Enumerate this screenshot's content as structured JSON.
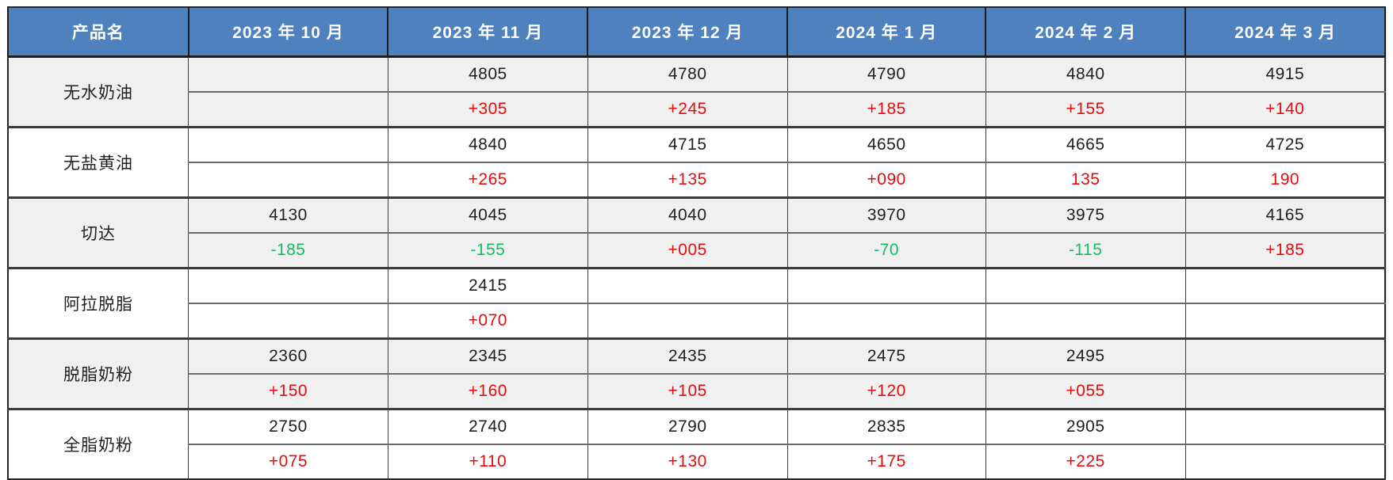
{
  "colors": {
    "header_bg": "#4e81bd",
    "header_text": "#ffffff",
    "band_gray": "#f0f0f0",
    "band_white": "#ffffff",
    "price_text": "#1f1f1f",
    "change_positive_red": "#e60c0c",
    "change_negative_green": "#11bd63"
  },
  "chart_data": {
    "type": "table",
    "title": "",
    "columns": [
      "产品名",
      "2023 年 10 月",
      "2023 年 11 月",
      "2023 年 12 月",
      "2024 年 1 月",
      "2024 年 2 月",
      "2024 年 3 月"
    ],
    "row_structure": "each product has a price row and a month-over-month change row; red = increase, green = decrease",
    "rows": [
      {
        "product": "无水奶油",
        "prices": [
          "",
          "4805",
          "4780",
          "4790",
          "4840",
          "4915"
        ],
        "changes": [
          "",
          "+305",
          "+245",
          "+185",
          "+155",
          "+140"
        ],
        "change_types": [
          "",
          "pos",
          "pos",
          "pos",
          "pos",
          "pos"
        ]
      },
      {
        "product": "无盐黄油",
        "prices": [
          "",
          "4840",
          "4715",
          "4650",
          "4665",
          "4725"
        ],
        "changes": [
          "",
          "+265",
          "+135",
          "+090",
          "135",
          "190"
        ],
        "change_types": [
          "",
          "pos",
          "pos",
          "pos",
          "pos",
          "pos"
        ]
      },
      {
        "product": "切达",
        "prices": [
          "4130",
          "4045",
          "4040",
          "3970",
          "3975",
          "4165"
        ],
        "changes": [
          "-185",
          "-155",
          "+005",
          "-70",
          "-115",
          "+185"
        ],
        "change_types": [
          "neg",
          "neg",
          "pos",
          "neg",
          "neg",
          "pos"
        ]
      },
      {
        "product": "阿拉脱脂",
        "prices": [
          "",
          "2415",
          "",
          "",
          "",
          ""
        ],
        "changes": [
          "",
          "+070",
          "",
          "",
          "",
          ""
        ],
        "change_types": [
          "",
          "pos",
          "",
          "",
          "",
          ""
        ]
      },
      {
        "product": "脱脂奶粉",
        "prices": [
          "2360",
          "2345",
          "2435",
          "2475",
          "2495",
          ""
        ],
        "changes": [
          "+150",
          "+160",
          "+105",
          "+120",
          "+055",
          ""
        ],
        "change_types": [
          "pos",
          "pos",
          "pos",
          "pos",
          "pos",
          ""
        ]
      },
      {
        "product": "全脂奶粉",
        "prices": [
          "2750",
          "2740",
          "2790",
          "2835",
          "2905",
          ""
        ],
        "changes": [
          "+075",
          "+110",
          "+130",
          "+175",
          "+225",
          ""
        ],
        "change_types": [
          "pos",
          "pos",
          "pos",
          "pos",
          "pos",
          ""
        ]
      }
    ]
  }
}
